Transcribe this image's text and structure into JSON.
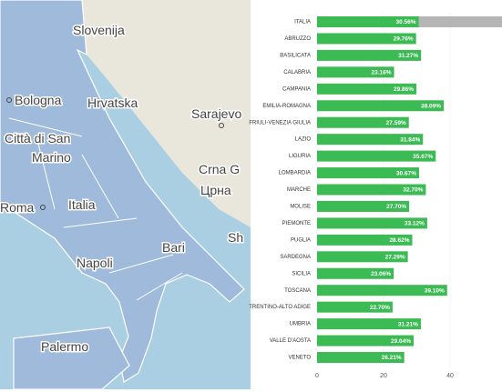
{
  "map": {
    "labels": [
      "Slovenija",
      "Hrvatska",
      "Bologna",
      "Città di San",
      "Marino",
      "Sarajevo",
      "Crna G",
      "Црна",
      "Italia",
      "Roma",
      "Bari",
      "Napoli",
      "Palermo",
      "Sh"
    ]
  },
  "chart_data": {
    "type": "bar",
    "orientation": "horizontal",
    "categories": [
      "ITALIA",
      "ABRUZZO",
      "BASILICATA",
      "CALABRIA",
      "CAMPANIA",
      "EMILIA-ROMAGNA",
      "FRIULI-VENEZIA GIULIA",
      "LAZIO",
      "LIGURIA",
      "LOMBARDIA",
      "MARCHE",
      "MOLISE",
      "PIEMONTE",
      "PUGLIA",
      "SARDEGNA",
      "SICILIA",
      "TOSCANA",
      "TRENTINO-ALTO ADIGE",
      "UMBRIA",
      "VALLE D'AOSTA",
      "VENETO"
    ],
    "values": [
      30.56,
      29.76,
      31.27,
      23.16,
      29.86,
      38.09,
      27.59,
      31.84,
      35.67,
      30.67,
      32.7,
      27.7,
      33.12,
      28.62,
      27.29,
      23.06,
      39.1,
      22.7,
      31.21,
      29.04,
      26.21
    ],
    "value_labels": [
      "30.56%",
      "29.76%",
      "31.27%",
      "23.16%",
      "29.86%",
      "38.09%",
      "27.59%",
      "31.84%",
      "35.67%",
      "30.67%",
      "32.70%",
      "27.70%",
      "33.12%",
      "28.62%",
      "27.29%",
      "23.06%",
      "39.10%",
      "22.70%",
      "31.21%",
      "29.04%",
      "26.21%"
    ],
    "color": "#3cba54",
    "highlight_color": "#b5b5b5",
    "xlim": [
      0,
      55.6
    ],
    "xticks": [
      0,
      20,
      40
    ]
  }
}
